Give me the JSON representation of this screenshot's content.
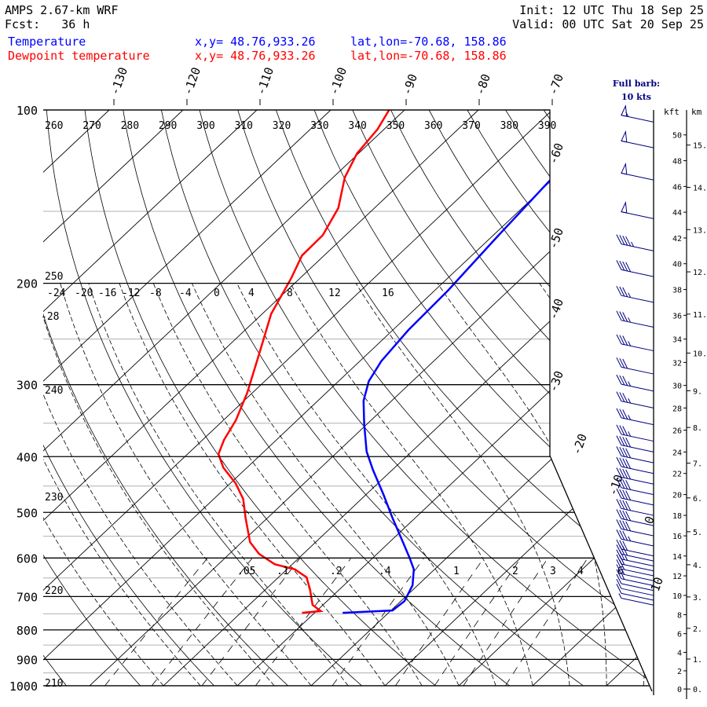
{
  "header": {
    "model": "AMPS 2.67-km WRF",
    "fcst": "Fcst:   36 h",
    "init": "Init: 12 UTC Thu 18 Sep 25",
    "valid": "Valid: 00 UTC Sat 20 Sep 25",
    "temp_label": "Temperature",
    "temp_xy": "x,y= 48.76,933.26",
    "temp_latlon": "lat,lon=-70.68, 158.86",
    "dew_label": "Dewpoint temperature",
    "dew_xy": "x,y= 48.76,933.26",
    "dew_latlon": "lat,lon=-70.68, 158.86",
    "barb_note_1": "Full barb:",
    "barb_note_2": "10 kts"
  },
  "colors": {
    "temperature": "#0000ff",
    "dewpoint": "#ff0000",
    "barbs": "#000080",
    "grid": "#000000",
    "minor_isobar": "#b0b0b0"
  },
  "chart_data": {
    "type": "line",
    "subtype": "skew-T log-P",
    "title": "AMPS 2.67-km WRF",
    "ylabel": "Pressure (hPa)",
    "ylim": [
      1000,
      100
    ],
    "pressure_ticks": [
      "100",
      "200",
      "300",
      "400",
      "500",
      "600",
      "700",
      "800",
      "900",
      "1000"
    ],
    "top_isotherm_labels": [
      "-130",
      "-120",
      "-110",
      "-100",
      "-90",
      "-80",
      "-70"
    ],
    "side_isotherm_labels": [
      "-60",
      "-50",
      "-40",
      "-30",
      "-20",
      "-10",
      "0",
      "10"
    ],
    "theta_labels_top": [
      "260",
      "270",
      "280",
      "290",
      "300",
      "310",
      "320",
      "330",
      "340",
      "350",
      "360",
      "370",
      "380",
      "390"
    ],
    "theta_labels_left": [
      "250",
      "240",
      "230",
      "220",
      "210"
    ],
    "row_labels": [
      "-24",
      "-20",
      "-16",
      "-12",
      "-8",
      "-4",
      "0",
      "4",
      "8",
      "12",
      "16"
    ],
    "row_label_extra": "-28",
    "mixing_ratio_labels": [
      ".05",
      ".1",
      ".2",
      ".4",
      "1",
      "2",
      "3",
      "4",
      "6"
    ],
    "mixing_ratio_values": [
      0.05,
      0.1,
      0.2,
      0.4,
      1,
      2,
      3,
      4,
      6
    ],
    "kft_header": "kft",
    "km_header": "km",
    "kft_ticks": [
      "0",
      "2",
      "4",
      "6",
      "8",
      "10",
      "12",
      "14",
      "16",
      "18",
      "20",
      "22",
      "24",
      "26",
      "28",
      "30",
      "32",
      "34",
      "36",
      "38",
      "40",
      "42",
      "44",
      "46",
      "48",
      "50"
    ],
    "km_ticks": [
      "0.",
      "1.",
      "2.",
      "3.",
      "4.",
      "5.",
      "6.",
      "7.",
      "8.",
      "9.",
      "10.",
      "11.",
      "12.",
      "13.",
      "14.",
      "15."
    ],
    "series": [
      {
        "name": "Temperature",
        "color": "#0000ff",
        "points": [
          {
            "p": 747,
            "T": -26.2
          },
          {
            "p": 740,
            "T": -19.8
          },
          {
            "p": 713,
            "T": -19.5
          },
          {
            "p": 669,
            "T": -20.7
          },
          {
            "p": 628,
            "T": -22.8
          },
          {
            "p": 600,
            "T": -25.0
          },
          {
            "p": 563,
            "T": -28.2
          },
          {
            "p": 512,
            "T": -33.0
          },
          {
            "p": 466,
            "T": -37.6
          },
          {
            "p": 422,
            "T": -42.6
          },
          {
            "p": 392,
            "T": -46.1
          },
          {
            "p": 351,
            "T": -50.4
          },
          {
            "p": 320,
            "T": -53.8
          },
          {
            "p": 296,
            "T": -55.9
          },
          {
            "p": 273,
            "T": -57.1
          },
          {
            "p": 241,
            "T": -57.9
          },
          {
            "p": 206,
            "T": -58.2
          },
          {
            "p": 168,
            "T": -59.2
          },
          {
            "p": 133,
            "T": -60.2
          },
          {
            "p": 113,
            "T": -61.0
          },
          {
            "p": 98,
            "T": -60.5
          }
        ]
      },
      {
        "name": "Dewpoint temperature",
        "color": "#ff0000",
        "points": [
          {
            "p": 747,
            "T": -31.7
          },
          {
            "p": 742,
            "T": -29.4
          },
          {
            "p": 724,
            "T": -31.4
          },
          {
            "p": 680,
            "T": -34.0
          },
          {
            "p": 648,
            "T": -36.2
          },
          {
            "p": 628,
            "T": -38.9
          },
          {
            "p": 615,
            "T": -42.4
          },
          {
            "p": 590,
            "T": -46.0
          },
          {
            "p": 563,
            "T": -48.9
          },
          {
            "p": 512,
            "T": -52.9
          },
          {
            "p": 474,
            "T": -56.0
          },
          {
            "p": 445,
            "T": -59.3
          },
          {
            "p": 418,
            "T": -63.2
          },
          {
            "p": 396,
            "T": -65.8
          },
          {
            "p": 374,
            "T": -67.1
          },
          {
            "p": 346,
            "T": -68.3
          },
          {
            "p": 310,
            "T": -70.7
          },
          {
            "p": 265,
            "T": -74.7
          },
          {
            "p": 226,
            "T": -78.8
          },
          {
            "p": 196,
            "T": -81.2
          },
          {
            "p": 179,
            "T": -83.0
          },
          {
            "p": 165,
            "T": -83.1
          },
          {
            "p": 148,
            "T": -84.9
          },
          {
            "p": 131,
            "T": -88.4
          },
          {
            "p": 119,
            "T": -90.2
          },
          {
            "p": 108,
            "T": -90.9
          },
          {
            "p": 100,
            "T": -92.1
          }
        ]
      }
    ],
    "wind_barbs": [
      {
        "kft": 51,
        "kt": 55
      },
      {
        "kft": 49,
        "kt": 50
      },
      {
        "kft": 46.5,
        "kt": 50
      },
      {
        "kft": 43.5,
        "kt": 50
      },
      {
        "kft": 41,
        "kt": 45
      },
      {
        "kft": 39,
        "kt": 40
      },
      {
        "kft": 37,
        "kt": 35
      },
      {
        "kft": 35,
        "kt": 35
      },
      {
        "kft": 33,
        "kt": 35
      },
      {
        "kft": 31,
        "kt": 30
      },
      {
        "kft": 29.5,
        "kt": 35
      },
      {
        "kft": 28,
        "kt": 35
      },
      {
        "kft": 26.5,
        "kt": 35
      },
      {
        "kft": 25,
        "kt": 35
      },
      {
        "kft": 24,
        "kt": 40
      },
      {
        "kft": 23,
        "kt": 40
      },
      {
        "kft": 22,
        "kt": 40
      },
      {
        "kft": 21,
        "kt": 40
      },
      {
        "kft": 20,
        "kt": 40
      },
      {
        "kft": 19,
        "kt": 40
      },
      {
        "kft": 18,
        "kt": 40
      },
      {
        "kft": 17,
        "kt": 40
      },
      {
        "kft": 16,
        "kt": 40
      },
      {
        "kft": 15,
        "kt": 35
      },
      {
        "kft": 14,
        "kt": 30
      },
      {
        "kft": 13.5,
        "kt": 30
      },
      {
        "kft": 13,
        "kt": 25
      },
      {
        "kft": 12.5,
        "kt": 20
      },
      {
        "kft": 12,
        "kt": 20
      },
      {
        "kft": 11.5,
        "kt": 15
      },
      {
        "kft": 11,
        "kt": 15
      },
      {
        "kft": 10.5,
        "kt": 10
      },
      {
        "kft": 10,
        "kt": 10
      },
      {
        "kft": 9.5,
        "kt": 10
      },
      {
        "kft": 9,
        "kt": 5
      }
    ]
  }
}
